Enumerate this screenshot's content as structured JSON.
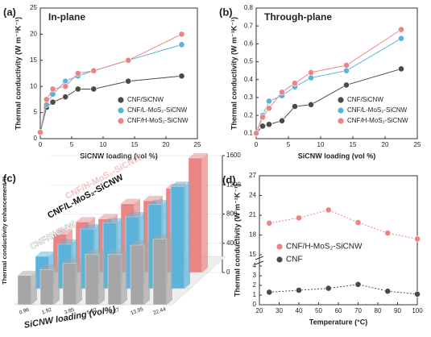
{
  "chart_data": [
    {
      "type": "line",
      "panel": "(a)",
      "annotation": "In-plane",
      "x_label": "SiCNW loading (vol %)",
      "y_label": "Thermal conductivity (W m⁻¹K⁻¹)",
      "x": [
        0,
        1,
        2,
        4,
        6,
        8.5,
        14,
        22.5
      ],
      "xlim": [
        0,
        25
      ],
      "xticks": [
        0,
        5,
        10,
        15,
        20,
        25
      ],
      "ylim": [
        0,
        25
      ],
      "yticks": [
        0,
        5,
        10,
        15,
        20,
        25
      ],
      "legend": "lower right",
      "series": [
        {
          "name": "CNF/SiCNW",
          "color": "#4a4a4a",
          "values": [
            1.2,
            6,
            7,
            8,
            9.5,
            9.5,
            11,
            12
          ]
        },
        {
          "name": "CNF/L-MoS₂-SiCNW",
          "color": "#5bb3d9",
          "values": [
            1.2,
            6.5,
            8.5,
            11,
            12,
            13,
            15,
            18
          ]
        },
        {
          "name": "CNF/H-MoS₂-SiCNW",
          "color": "#e98585",
          "values": [
            1.2,
            7.5,
            9.5,
            10,
            12.5,
            13,
            15,
            20
          ]
        }
      ]
    },
    {
      "type": "line",
      "panel": "(b)",
      "annotation": "Through-plane",
      "x_label": "SiCNW loading (vol %)",
      "y_label": "Thermal conductivity (W m⁻¹K⁻¹)",
      "x": [
        0,
        1,
        2,
        4,
        6,
        8.5,
        14,
        22.5
      ],
      "xlim": [
        0,
        25
      ],
      "xticks": [
        0,
        5,
        10,
        15,
        20,
        25
      ],
      "ylim": [
        0.07,
        0.8
      ],
      "yticks": [
        0.1,
        0.2,
        0.3,
        0.4,
        0.5,
        0.6,
        0.7,
        0.8
      ],
      "legend": "lower right",
      "series": [
        {
          "name": "CNF/SiCNW",
          "color": "#4a4a4a",
          "values": [
            0.1,
            0.14,
            0.15,
            0.17,
            0.25,
            0.26,
            0.37,
            0.46
          ]
        },
        {
          "name": "CNF/L-MoS₂-SiCNW",
          "color": "#5bb3d9",
          "values": [
            0.1,
            0.2,
            0.28,
            0.31,
            0.36,
            0.41,
            0.45,
            0.63
          ]
        },
        {
          "name": "CNF/H-MoS₂-SiCNW",
          "color": "#e98585",
          "values": [
            0.1,
            0.19,
            0.24,
            0.33,
            0.38,
            0.44,
            0.48,
            0.68
          ]
        }
      ]
    },
    {
      "type": "bar3d",
      "panel": "(c)",
      "x_label": "SiCNW loading (vol%)",
      "y_label": "Thermal conductivity enhancement %",
      "categories": [
        "0.96",
        "1.92",
        "3.85",
        "5.82",
        "8.27",
        "13.95",
        "22.44"
      ],
      "ylim": [
        0,
        1600
      ],
      "yticks": [
        0,
        400,
        800,
        1200,
        1600
      ],
      "series": [
        {
          "name": "CNF/SiCNW",
          "color": "#a6a6a6",
          "values": [
            400,
            483,
            567,
            692,
            692,
            817,
            900
          ]
        },
        {
          "name": "CNF/L-MoS₂-SiCNW",
          "color": "#5bb3d9",
          "values": [
            442,
            608,
            817,
            900,
            983,
            1150,
            1400
          ]
        },
        {
          "name": "CNF/H-MoS₂-SiCNW",
          "color": "#e98585",
          "values": [
            525,
            692,
            733,
            942,
            983,
            1150,
            1567
          ]
        }
      ]
    },
    {
      "type": "scatter",
      "panel": "(d)",
      "x_label": "Temperature (°C)",
      "y_label": "Thermal conductivity (W m⁻¹K⁻¹)",
      "x": [
        25,
        40,
        55,
        70,
        85,
        100
      ],
      "xlim": [
        20,
        100
      ],
      "xticks": [
        20,
        30,
        40,
        50,
        60,
        70,
        80,
        90,
        100
      ],
      "ylim": [
        0,
        27
      ],
      "ybreak": [
        4,
        15
      ],
      "yticks": [
        0,
        1,
        2,
        3,
        4,
        15,
        18,
        21,
        24,
        27
      ],
      "legend": "center",
      "series": [
        {
          "name": "CNF/H-MoS₂-SiCNW",
          "color": "#e98585",
          "values": [
            19.8,
            20.6,
            21.8,
            19.9,
            18.3,
            17.4
          ]
        },
        {
          "name": "CNF",
          "color": "#4a4a4a",
          "values": [
            1.3,
            1.5,
            1.7,
            2.1,
            1.4,
            1.1
          ]
        }
      ]
    }
  ]
}
